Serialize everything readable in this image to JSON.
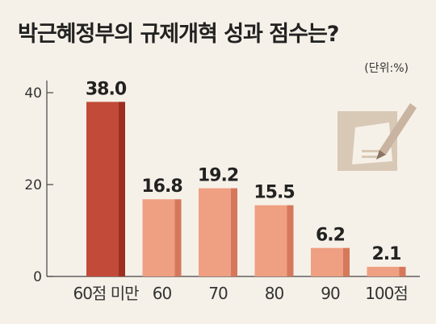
{
  "chart_data": {
    "type": "bar",
    "title": "박근혜정부의 규제개혁 성과 점수는?",
    "unit": "(단위:%)",
    "categories": [
      "60점 미만",
      "60",
      "70",
      "80",
      "90",
      "100점"
    ],
    "values": [
      38.0,
      16.8,
      19.2,
      15.5,
      6.2,
      2.1
    ],
    "value_labels": [
      "38.0",
      "16.8",
      "19.2",
      "15.5",
      "6.2",
      "2.1"
    ],
    "y_ticks": [
      "0",
      "20",
      "40"
    ],
    "ylim": [
      0,
      40
    ],
    "colors": {
      "highlight": "#c24a38",
      "highlight_side": "#9c2f22",
      "bar": "#ef9f82",
      "bar_side": "#d6785b"
    },
    "icon": "document-pen-icon"
  }
}
